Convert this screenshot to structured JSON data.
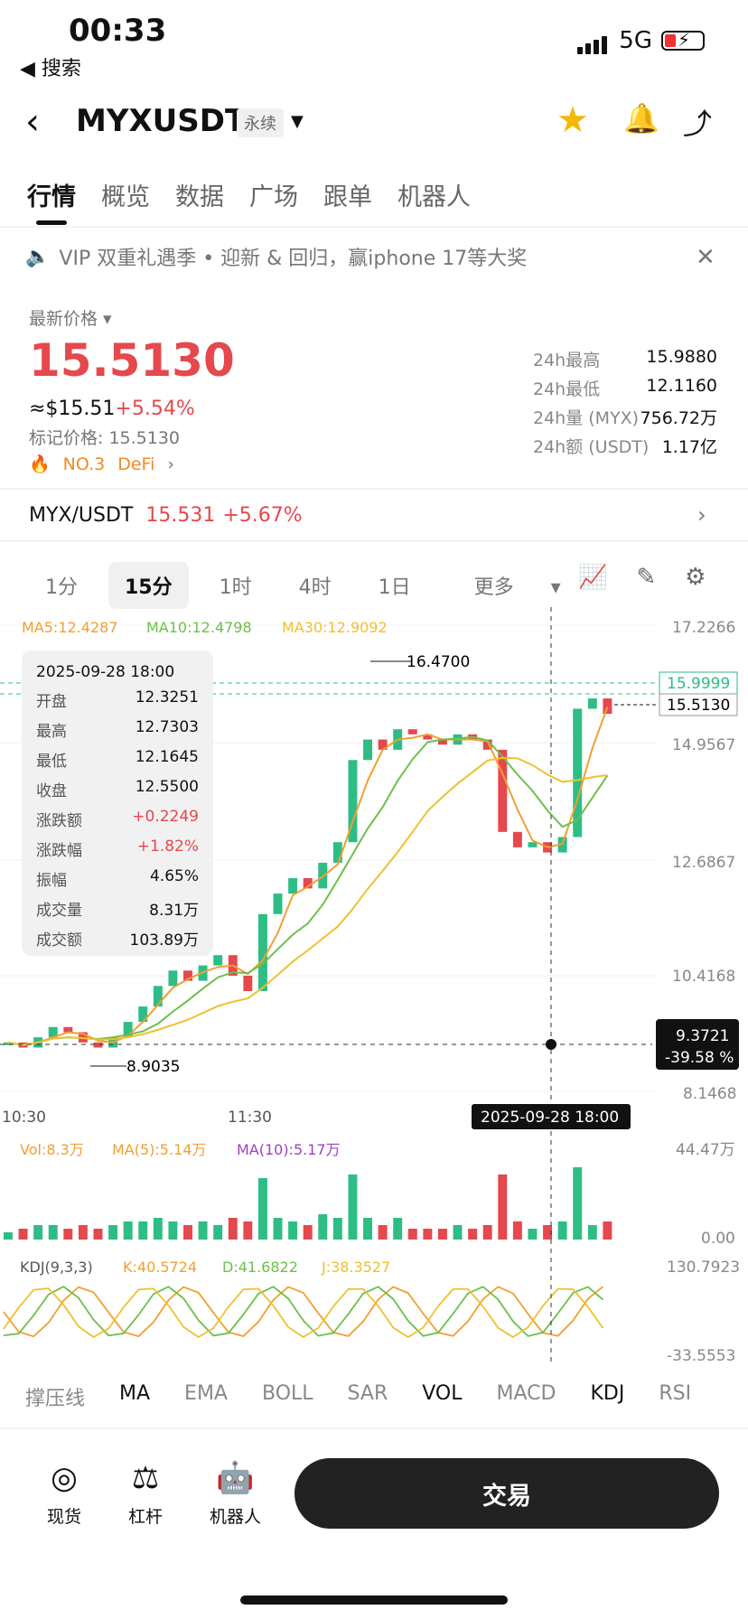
{
  "status": {
    "time": "00:33",
    "back": "◀ 搜索",
    "network": "5G"
  },
  "header": {
    "symbol": "MYXUSDT",
    "tag": "永续"
  },
  "tabs": [
    "行情",
    "概览",
    "数据",
    "广场",
    "跟单",
    "机器人"
  ],
  "notice": "VIP 双重礼遇季 • 迎新 & 回归，赢iphone 17等大奖",
  "ticker": {
    "price_label": "最新价格",
    "price": "15.5130",
    "usd": "≈$15.51",
    "usd_change": "+5.54%",
    "mark": "标记价格: 15.5130",
    "rank": "NO.3",
    "sector": "DeFi",
    "stats": [
      {
        "k": "24h最高",
        "v": "15.9880"
      },
      {
        "k": "24h最低",
        "v": "12.1160"
      },
      {
        "k": "24h量 (MYX)",
        "v": "756.72万"
      },
      {
        "k": "24h额 (USDT)",
        "v": "1.17亿"
      }
    ]
  },
  "spot_pair": {
    "name": "MYX/USDT",
    "price": "15.531",
    "change": "+5.67%"
  },
  "timeframes": [
    "1分",
    "15分",
    "1时",
    "4时",
    "1日",
    "更多"
  ],
  "chart_labels": {
    "ma5": "MA5:12.4287",
    "ma10": "MA10:12.4798",
    "ma30": "MA30:12.9092",
    "high_mark": "16.4700",
    "low_mark": "8.9035",
    "tag_green": "15.9999",
    "tag_last": "15.5130",
    "cursor_price": "9.3721",
    "cursor_pct": "-39.58 %",
    "cursor_time": "2025-09-28 18:00",
    "t1": "10:30",
    "t2": "11:30",
    "vol": "Vol:8.3万",
    "vol_ma5": "MA(5):5.14万",
    "vol_ma10": "MA(10):5.17万",
    "vol_max": "44.47万",
    "vol_min": "0.00",
    "kdj": "KDJ(9,3,3)",
    "k": "K:40.5724",
    "d": "D:41.6822",
    "j": "J:38.3527",
    "kdj_max": "130.7923",
    "kdj_min": "-33.5553"
  },
  "tooltip": {
    "date": "2025-09-28 18:00",
    "rows": [
      {
        "k": "开盘",
        "v": "12.3251"
      },
      {
        "k": "最高",
        "v": "12.7303"
      },
      {
        "k": "最低",
        "v": "12.1645"
      },
      {
        "k": "收盘",
        "v": "12.5500"
      },
      {
        "k": "涨跌额",
        "v": "+0.2249"
      },
      {
        "k": "涨跌幅",
        "v": "+1.82%"
      },
      {
        "k": "振幅",
        "v": "4.65%"
      },
      {
        "k": "成交量",
        "v": "8.31万"
      },
      {
        "k": "成交额",
        "v": "103.89万"
      }
    ]
  },
  "indicators": [
    "撑压线",
    "MA",
    "EMA",
    "BOLL",
    "SAR",
    "VOL",
    "MACD",
    "KDJ",
    "RSI"
  ],
  "bottom_nav": [
    "现货",
    "杠杆",
    "机器人"
  ],
  "trade_button": "交易",
  "chart_data": {
    "type": "line",
    "title": "",
    "y_ticks": [
      17.2266,
      14.9567,
      12.6867,
      10.4168,
      8.1468
    ],
    "ylim": [
      8.1468,
      17.2266
    ],
    "x_tick_labels": [
      "10:30",
      "11:30"
    ],
    "price_series": [
      9.1,
      9.0,
      9.2,
      9.4,
      9.3,
      9.1,
      9.0,
      9.2,
      9.5,
      9.8,
      10.2,
      10.5,
      10.3,
      10.6,
      10.8,
      10.4,
      10.1,
      11.6,
      12.0,
      12.3,
      12.1,
      12.6,
      13.0,
      14.6,
      15.0,
      14.8,
      15.2,
      15.1,
      15.0,
      14.9,
      15.1,
      15.0,
      14.8,
      13.2,
      12.9,
      13.0,
      12.8,
      13.1,
      15.6,
      15.8,
      15.5
    ],
    "colors": {
      "up": "#2ebd85",
      "down": "#e5484d",
      "ma5": "#f0a030",
      "ma10": "#6cc04a",
      "ma30": "#f0c030"
    }
  }
}
